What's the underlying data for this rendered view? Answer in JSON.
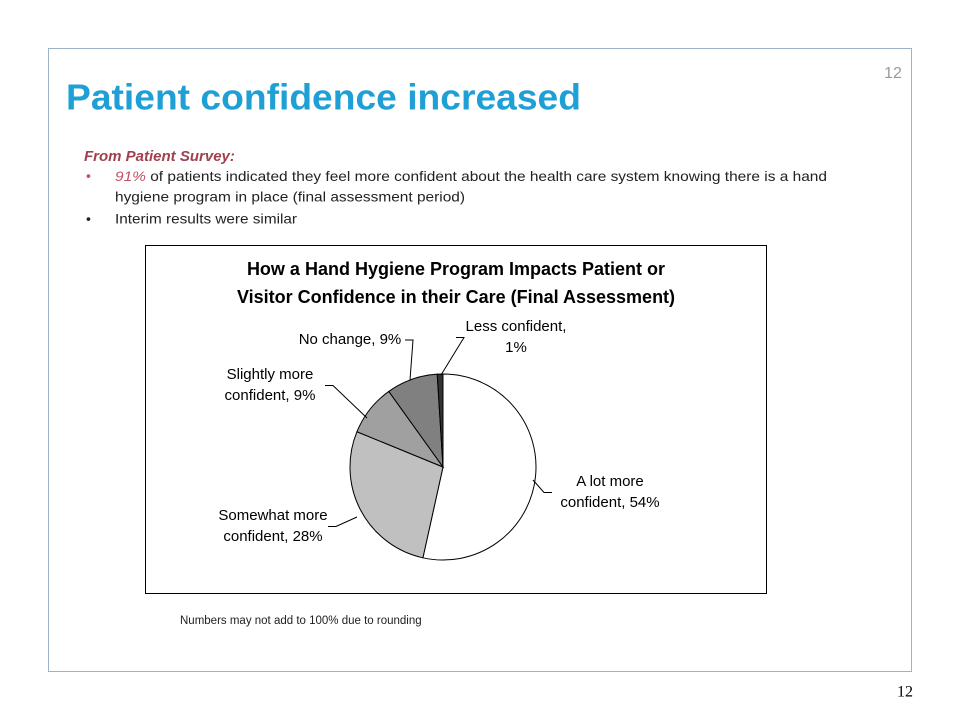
{
  "slide": {
    "title": "Patient confidence increased",
    "page_number_top": "12",
    "page_number_bottom": "12",
    "subheading": "From Patient Survey:",
    "bullets": [
      {
        "highlight": "91%",
        "lines": [
          " of patients indicated they feel more confident about the health care system knowing there is a hand",
          "hygiene program in place (final assessment period)"
        ]
      },
      {
        "lines": [
          "Interim results were similar"
        ]
      }
    ],
    "footnote": "Numbers may  not add to 100% due to rounding"
  },
  "chart_data": {
    "type": "pie",
    "title": [
      "How a Hand Hygiene Program Impacts Patient or",
      "Visitor Confidence in their Care (Final Assessment)"
    ],
    "labels": [
      [
        "A lot more",
        "confident, 54%"
      ],
      [
        "Somewhat more",
        "confident, 28%"
      ],
      [
        "Slightly more",
        "confident, 9%"
      ],
      [
        "No change, 9%"
      ],
      [
        "Less confident,",
        "1%"
      ]
    ],
    "values": [
      54,
      28,
      9,
      9,
      1
    ],
    "colors": [
      "#ffffff",
      "#c0c0c0",
      "#a0a0a0",
      "#808080",
      "#333333"
    ]
  }
}
